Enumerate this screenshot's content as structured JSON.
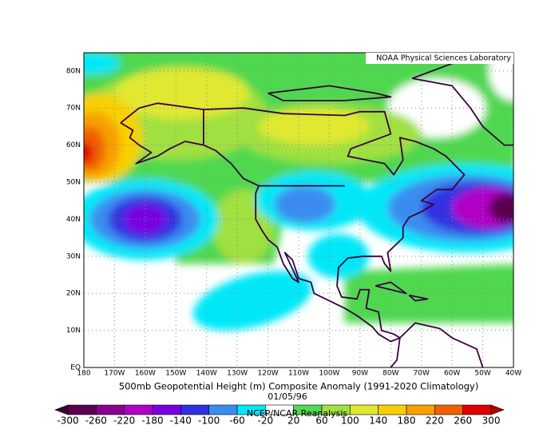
{
  "header": {
    "credit": "NOAA Physical Sciences Laboratory"
  },
  "map": {
    "lon_labels": [
      "180",
      "170W",
      "160W",
      "150W",
      "140W",
      "130W",
      "120W",
      "110W",
      "100W",
      "90W",
      "80W",
      "70W",
      "60W",
      "50W",
      "40W"
    ],
    "lat_labels": [
      "EQ",
      "10N",
      "20N",
      "30N",
      "40N",
      "50N",
      "60N",
      "70N",
      "80N"
    ]
  },
  "caption": {
    "title": "500mb Geopotential Height (m) Composite Anomaly (1991-2020 Climatology)",
    "date": "01/05/96",
    "source": "NCEP/NCAR Reanalysis"
  },
  "colorbar": {
    "levels": [
      -300,
      -260,
      -220,
      -180,
      -140,
      -100,
      -60,
      -20,
      20,
      60,
      100,
      140,
      180,
      220,
      260,
      300
    ],
    "colors": [
      "#5a0050",
      "#8a0090",
      "#b000c8",
      "#7800e0",
      "#3030e0",
      "#3a8cf0",
      "#00e8f8",
      "#ffffff",
      "#50d850",
      "#a0e040",
      "#e0e830",
      "#f8d000",
      "#f8a000",
      "#f06000",
      "#e00000"
    ],
    "under_color": "#3a0030",
    "over_color": "#b00000"
  }
}
